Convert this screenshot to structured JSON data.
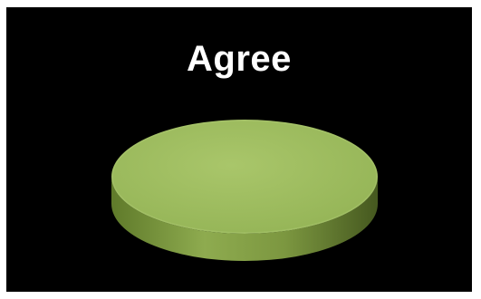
{
  "chart_data": {
    "type": "pie",
    "title": "Agree",
    "categories": [
      "Agree"
    ],
    "values": [
      100
    ],
    "colors": {
      "top": "#9bba59",
      "side_light": "#7f9a43",
      "side_dark": "#4f6424",
      "background": "#000000"
    },
    "style": "3d"
  }
}
